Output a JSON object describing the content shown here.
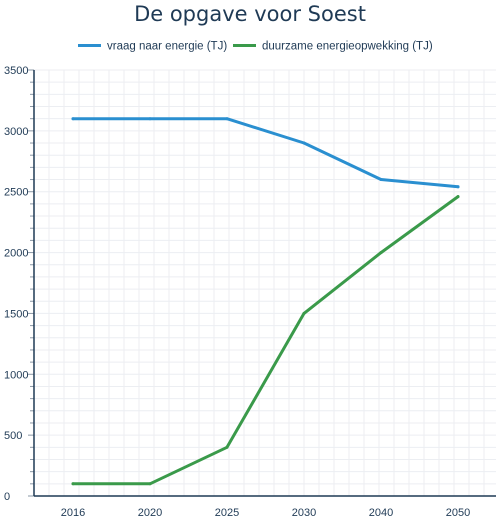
{
  "chart_data": {
    "type": "line",
    "title": "De opgave voor Soest",
    "xlabel": "",
    "ylabel": "",
    "categories": [
      "2016",
      "2020",
      "2025",
      "2030",
      "2040",
      "2050"
    ],
    "series": [
      {
        "name": "vraag naar energie  (TJ)",
        "color": "#2a8fd0",
        "values": [
          3100,
          3100,
          3100,
          2900,
          2600,
          2540
        ]
      },
      {
        "name": "duurzame energieopwekking (TJ)",
        "color": "#3a9a4a",
        "values": [
          100,
          100,
          400,
          1500,
          2000,
          2460
        ]
      }
    ],
    "ylim": [
      0,
      3500
    ],
    "yticks": [
      "0",
      "500",
      "1000",
      "1500",
      "2000",
      "2500",
      "3000",
      "3500"
    ],
    "grid": true,
    "legend": "top"
  }
}
